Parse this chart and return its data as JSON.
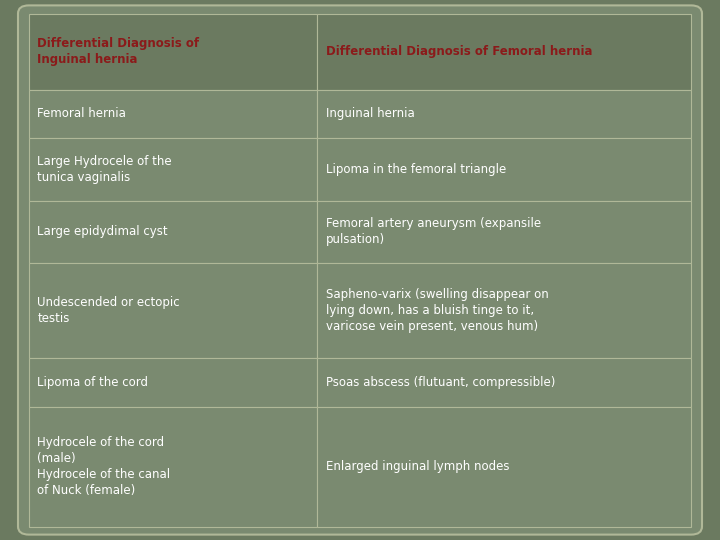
{
  "title_left": "Differential Diagnosis of\nInguinal hernia",
  "title_right": "Differential Diagnosis of Femoral hernia",
  "title_color": "#8B1A1A",
  "header_bg": "#6b7a60",
  "row_bg": "#7a8a70",
  "outer_bg": "#6b7a60",
  "border_color": "#b0b898",
  "text_color": "#ffffff",
  "rows": [
    {
      "left": "Femoral hernia",
      "right": "Inguinal hernia"
    },
    {
      "left": "Large Hydrocele of the\ntunica vaginalis",
      "right": "Lipoma in the femoral triangle"
    },
    {
      "left": "Large epidydimal cyst",
      "right": "Femoral artery aneurysm (expansile\npulsation)"
    },
    {
      "left": "Undescended or ectopic\ntestis",
      "right": "Sapheno-varix (swelling disappear on\nlying down, has a bluish tinge to it,\nvaricose vein present, venous hum)"
    },
    {
      "left": "Lipoma of the cord",
      "right": "Psoas abscess (flutuant, compressible)"
    },
    {
      "left": "Hydrocele of the cord\n(male)\nHydrocele of the canal\nof Nuck (female)",
      "right": "Enlarged inguinal lymph nodes"
    }
  ],
  "fig_width": 7.2,
  "fig_height": 5.4,
  "dpi": 100,
  "col_split": 0.435
}
